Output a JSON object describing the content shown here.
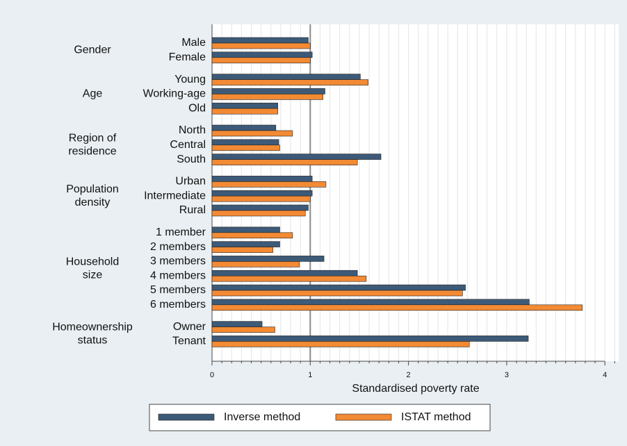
{
  "chart_data": {
    "type": "bar",
    "orientation": "horizontal",
    "groups": [
      {
        "name": [
          "Gender"
        ],
        "categories": [
          "Male",
          "Female"
        ]
      },
      {
        "name": [
          "Age"
        ],
        "categories": [
          "Young",
          "Working-age",
          "Old"
        ]
      },
      {
        "name": [
          "Region of",
          "residence"
        ],
        "categories": [
          "North",
          "Central",
          "South"
        ]
      },
      {
        "name": [
          "Population",
          "density"
        ],
        "categories": [
          "Urban",
          "Intermediate",
          "Rural"
        ]
      },
      {
        "name": [
          "Household",
          "size"
        ],
        "categories": [
          "1 member",
          "2 members",
          "3 members",
          "4 members",
          "5 members",
          "6 members"
        ]
      },
      {
        "name": [
          "Homeownership",
          "status"
        ],
        "categories": [
          "Owner",
          "Tenant"
        ]
      }
    ],
    "series": [
      {
        "name": "Inverse method",
        "color": "#3d5a78",
        "values": [
          0.98,
          1.02,
          1.51,
          1.15,
          0.67,
          0.65,
          0.68,
          1.72,
          1.02,
          1.02,
          0.98,
          0.69,
          0.69,
          1.14,
          1.48,
          2.58,
          3.23,
          0.51,
          3.22
        ]
      },
      {
        "name": "ISTAT method",
        "color": "#f38a34",
        "values": [
          1.0,
          1.0,
          1.59,
          1.13,
          0.67,
          0.82,
          0.69,
          1.48,
          1.16,
          1.0,
          0.95,
          0.82,
          0.62,
          0.89,
          1.57,
          2.55,
          3.77,
          0.64,
          2.62
        ]
      }
    ],
    "x_label": "Standardised poverty rate",
    "xlim": [
      0,
      4.14
    ],
    "xticks": [
      0,
      1,
      2,
      3,
      4
    ],
    "minor_xticks": [
      0.1,
      0.2,
      0.3,
      0.4,
      0.5,
      0.6,
      0.7,
      0.8,
      0.9,
      1.1,
      1.2,
      1.3,
      1.4,
      1.5,
      1.6,
      1.7,
      1.8,
      1.9,
      2.1,
      2.2,
      2.3,
      2.4,
      2.5,
      2.6,
      2.7,
      2.8,
      2.9,
      3.1,
      3.2,
      3.3,
      3.4,
      3.5,
      3.6,
      3.7,
      3.8,
      3.9,
      4.1
    ],
    "reference_line": 1,
    "grid": true,
    "legend": "bottom"
  }
}
